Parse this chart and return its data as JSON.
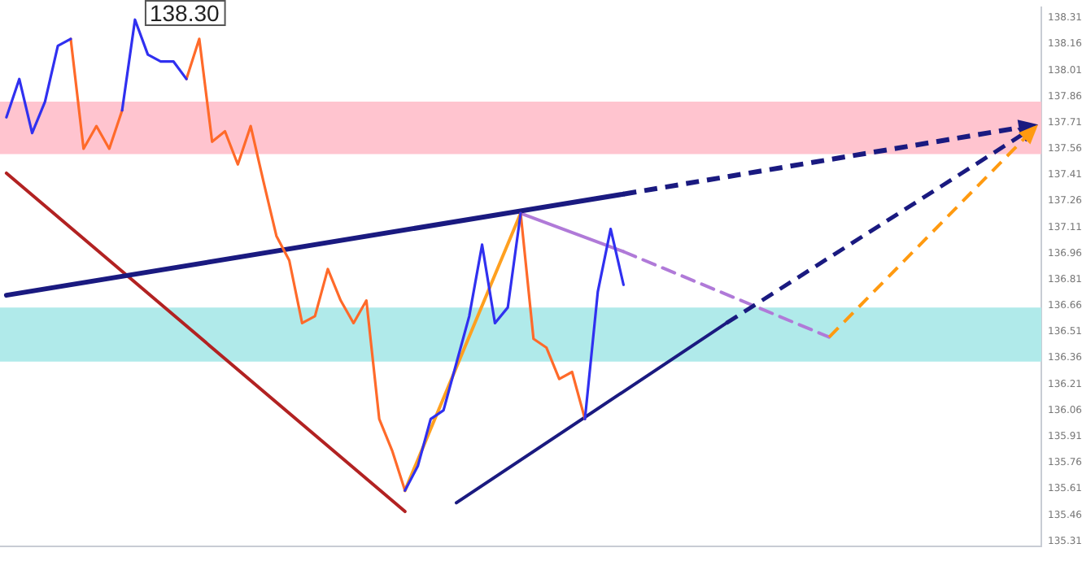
{
  "chart_data": {
    "type": "line",
    "legend": false,
    "grid": false,
    "marker": "none",
    "tick_labels": "y",
    "categories": [
      null,
      null,
      null,
      null,
      null,
      null,
      null,
      null,
      null,
      null,
      null,
      null,
      null,
      null,
      null,
      null,
      null,
      null,
      null,
      null,
      null,
      null,
      null,
      null,
      null,
      null,
      null,
      null,
      null,
      null,
      null,
      null,
      null,
      null,
      null,
      null,
      null,
      null,
      null,
      null,
      null,
      null,
      null,
      null,
      null,
      null,
      null,
      null,
      null,
      null,
      null,
      null,
      null,
      null,
      null,
      null,
      null,
      null,
      null,
      null,
      null,
      null,
      null,
      null,
      null,
      null,
      null,
      null,
      null,
      null,
      null,
      null,
      null,
      null,
      null,
      null,
      null,
      null,
      null,
      null,
      null
    ],
    "ylim": [
      135.28,
      138.37
    ],
    "yticks": [
      135.31,
      135.46,
      135.61,
      135.76,
      135.91,
      136.06,
      136.21,
      136.36,
      136.51,
      136.66,
      136.81,
      136.96,
      137.11,
      137.26,
      137.41,
      137.56,
      137.71,
      137.86,
      138.01,
      138.16,
      138.31
    ],
    "annotations": [
      "138.30"
    ],
    "bands": [
      {
        "axis": "y",
        "from": 137.53,
        "to": 137.83,
        "color": "#ffc4cf"
      },
      {
        "axis": "y",
        "from": 136.34,
        "to": 136.65,
        "color": "#b0eaea"
      }
    ],
    "series": [
      {
        "line_style": "solid",
        "color": "#3030f0",
        "values": [
          137.74,
          137.96,
          137.65,
          137.83,
          138.15,
          138.19,
          null,
          null,
          null,
          137.78,
          138.3,
          138.1,
          138.06,
          138.06,
          137.96,
          null,
          null,
          null,
          null,
          null,
          null,
          null,
          null,
          null,
          null,
          null,
          null,
          null,
          null,
          null,
          null,
          135.6,
          135.74,
          136.01,
          136.06,
          136.33,
          136.6,
          137.01,
          136.56,
          136.65,
          137.19,
          null,
          null,
          null,
          null,
          136.01,
          136.74,
          137.1,
          136.78,
          null,
          null,
          null,
          null,
          null,
          null,
          null,
          null,
          null,
          null,
          null,
          null,
          null,
          null,
          null,
          null,
          null,
          null,
          null,
          null,
          null,
          null,
          null,
          null,
          null,
          null,
          null,
          null,
          null,
          null,
          null,
          null
        ]
      },
      {
        "line_style": "solid",
        "color": "#ff6a2a",
        "values": [
          null,
          null,
          null,
          null,
          null,
          138.19,
          137.56,
          137.69,
          137.56,
          137.78,
          null,
          null,
          null,
          null,
          137.96,
          138.19,
          137.6,
          137.66,
          137.47,
          137.69,
          137.37,
          137.06,
          136.92,
          136.56,
          136.6,
          136.87,
          136.69,
          136.56,
          136.69,
          136.01,
          135.83,
          135.6,
          null,
          null,
          null,
          null,
          null,
          null,
          null,
          null,
          137.19,
          136.47,
          136.42,
          136.24,
          136.28,
          136.01,
          null,
          null,
          null,
          null,
          null,
          null,
          null,
          null,
          null,
          null,
          null,
          null,
          null,
          null,
          null,
          null,
          null,
          null,
          null,
          null,
          null,
          null,
          null,
          null,
          null,
          null,
          null,
          null,
          null,
          null,
          null,
          null,
          null,
          null,
          null
        ]
      },
      {
        "line_style": "solid",
        "color": "#1a1a80",
        "values": [
          136.72,
          null,
          null,
          null,
          null,
          null,
          null,
          null,
          null,
          null,
          null,
          null,
          null,
          null,
          null,
          null,
          null,
          null,
          null,
          null,
          null,
          null,
          null,
          null,
          null,
          null,
          null,
          null,
          null,
          null,
          null,
          null,
          null,
          null,
          null,
          null,
          null,
          null,
          null,
          null,
          null,
          null,
          null,
          null,
          null,
          null,
          null,
          null,
          137.3,
          null,
          null,
          null,
          null,
          null,
          null,
          null,
          null,
          null,
          null,
          null,
          null,
          null,
          null,
          null,
          null,
          null,
          null,
          null,
          null,
          null,
          null,
          null,
          null,
          null,
          null,
          null,
          null,
          null,
          null,
          null,
          null
        ]
      },
      {
        "line_style": "solid",
        "color": "#1a1a80",
        "values": [
          null,
          null,
          null,
          null,
          null,
          null,
          null,
          null,
          null,
          null,
          null,
          null,
          null,
          null,
          null,
          null,
          null,
          null,
          null,
          null,
          null,
          null,
          null,
          null,
          null,
          null,
          null,
          null,
          null,
          null,
          null,
          null,
          null,
          null,
          null,
          135.53,
          null,
          null,
          null,
          null,
          null,
          null,
          null,
          null,
          null,
          null,
          null,
          null,
          null,
          null,
          null,
          null,
          null,
          null,
          null,
          null,
          136.56,
          null,
          null,
          null,
          null,
          null,
          null,
          null,
          null,
          null,
          null,
          null,
          null,
          null,
          null,
          null,
          null,
          null,
          null,
          null,
          null,
          null,
          null,
          null,
          null
        ]
      },
      {
        "line_style": "solid",
        "color": "#b22222",
        "values": [
          137.42,
          null,
          null,
          null,
          null,
          null,
          null,
          null,
          null,
          null,
          null,
          null,
          null,
          null,
          null,
          null,
          null,
          null,
          null,
          null,
          null,
          null,
          null,
          null,
          null,
          null,
          null,
          null,
          null,
          null,
          null,
          135.48,
          null,
          null,
          null,
          null,
          null,
          null,
          null,
          null,
          null,
          null,
          null,
          null,
          null,
          null,
          null,
          null,
          null,
          null,
          null,
          null,
          null,
          null,
          null,
          null,
          null,
          null,
          null,
          null,
          null,
          null,
          null,
          null,
          null,
          null,
          null,
          null,
          null,
          null,
          null,
          null,
          null,
          null,
          null,
          null,
          null,
          null,
          null,
          null,
          null
        ]
      },
      {
        "line_style": "solid",
        "color": "#ffa020",
        "values": [
          null,
          null,
          null,
          null,
          null,
          null,
          null,
          null,
          null,
          null,
          null,
          null,
          null,
          null,
          null,
          null,
          null,
          null,
          null,
          null,
          null,
          null,
          null,
          null,
          null,
          null,
          null,
          null,
          null,
          null,
          null,
          135.6,
          null,
          null,
          null,
          null,
          null,
          null,
          null,
          null,
          137.19,
          null,
          null,
          null,
          null,
          null,
          null,
          null,
          null,
          null,
          null,
          null,
          null,
          null,
          null,
          null,
          null,
          null,
          null,
          null,
          null,
          null,
          null,
          null,
          null,
          null,
          null,
          null,
          null,
          null,
          null,
          null,
          null,
          null,
          null,
          null,
          null,
          null,
          null,
          null,
          null
        ]
      },
      {
        "line_style": "solid",
        "color": "#b07ad8",
        "values": [
          null,
          null,
          null,
          null,
          null,
          null,
          null,
          null,
          null,
          null,
          null,
          null,
          null,
          null,
          null,
          null,
          null,
          null,
          null,
          null,
          null,
          null,
          null,
          null,
          null,
          null,
          null,
          null,
          null,
          null,
          null,
          null,
          null,
          null,
          null,
          null,
          null,
          null,
          null,
          null,
          137.19,
          null,
          null,
          null,
          null,
          null,
          null,
          null,
          136.97,
          null,
          null,
          null,
          null,
          null,
          null,
          null,
          null,
          null,
          null,
          null,
          null,
          null,
          null,
          null,
          null,
          null,
          null,
          null,
          null,
          null,
          null,
          null,
          null,
          null,
          null,
          null,
          null,
          null,
          null,
          null,
          null
        ]
      },
      {
        "line_style": "dashed",
        "color": "#b07ad8",
        "values": [
          null,
          null,
          null,
          null,
          null,
          null,
          null,
          null,
          null,
          null,
          null,
          null,
          null,
          null,
          null,
          null,
          null,
          null,
          null,
          null,
          null,
          null,
          null,
          null,
          null,
          null,
          null,
          null,
          null,
          null,
          null,
          null,
          null,
          null,
          null,
          null,
          null,
          null,
          null,
          null,
          null,
          null,
          null,
          null,
          null,
          null,
          null,
          null,
          136.97,
          null,
          null,
          null,
          null,
          null,
          null,
          null,
          null,
          null,
          null,
          null,
          null,
          null,
          null,
          null,
          136.48,
          null,
          null,
          null,
          null,
          null,
          null,
          null,
          null,
          null,
          null,
          null,
          null,
          null,
          null,
          null,
          null
        ]
      }
    ]
  }
}
